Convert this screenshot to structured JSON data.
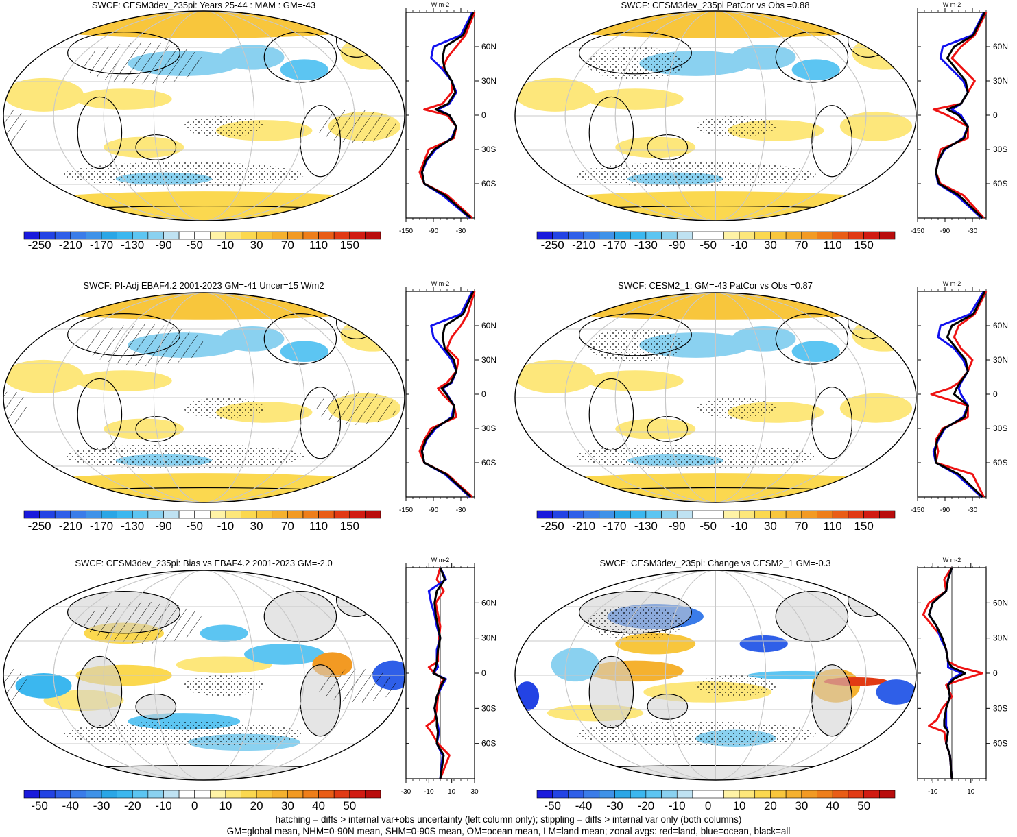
{
  "footnotes": [
    "hatching = diffs > internal var+obs uncertainty (left column only); stippling = diffs > internal var only (both columns)",
    "GM=global mean, NHM=0-90N mean, SHM=0-90S mean, OM=ocean mean, LM=land mean; zonal avgs: red=land, blue=ocean, black=all"
  ],
  "colors": {
    "land_gray": "#cfcfcf",
    "zonal_land": "#ee1111",
    "zonal_ocean": "#1111ee",
    "zonal_all": "#000000"
  },
  "chart_data": [
    {
      "type": "heatmap",
      "title": "SWCF: CESM3dev_235pi: Years 25-44 : MAM : GM=-43",
      "colorbar": {
        "ticks": [
          "-250",
          "-210",
          "-170",
          "-130",
          "-90",
          "-50",
          "-10",
          "30",
          "70",
          "110",
          "150"
        ]
      },
      "zonal": {
        "units": "W m-2",
        "xticks": [
          "-150",
          "-90",
          "-30"
        ],
        "xlim": [
          -150,
          0
        ],
        "yticks": [
          "60N",
          "30N",
          "0",
          "30S",
          "60S"
        ],
        "series": [
          {
            "name": "land",
            "lat": [
              90,
              70,
              60,
              50,
              40,
              30,
              20,
              10,
              5,
              0,
              -10,
              -20,
              -30,
              -40,
              -50,
              -60,
              -70,
              -90
            ],
            "values": [
              0,
              -20,
              -40,
              -60,
              -70,
              -50,
              -50,
              -70,
              -110,
              -60,
              -40,
              -45,
              -100,
              -110,
              -120,
              -110,
              -60,
              -5
            ]
          },
          {
            "name": "ocean",
            "lat": [
              90,
              70,
              60,
              50,
              40,
              30,
              20,
              10,
              5,
              0,
              -10,
              -20,
              -30,
              -40,
              -50,
              -60,
              -70,
              -90
            ],
            "values": [
              -5,
              -30,
              -90,
              -95,
              -70,
              -50,
              -40,
              -55,
              -80,
              -55,
              -40,
              -50,
              -85,
              -105,
              -115,
              -110,
              -70,
              -10
            ]
          },
          {
            "name": "all",
            "lat": [
              90,
              70,
              60,
              50,
              40,
              30,
              20,
              10,
              5,
              0,
              -10,
              -20,
              -30,
              -40,
              -50,
              -60,
              -70,
              -90
            ],
            "values": [
              -3,
              -25,
              -65,
              -70,
              -65,
              -50,
              -42,
              -58,
              -85,
              -55,
              -40,
              -48,
              -88,
              -107,
              -115,
              -110,
              -65,
              -8
            ]
          }
        ]
      }
    },
    {
      "type": "heatmap",
      "title": "SWCF: CESM3dev_235pi PatCor vs Obs =0.88",
      "colorbar": {
        "ticks": [
          "-250",
          "-210",
          "-170",
          "-130",
          "-90",
          "-50",
          "-10",
          "30",
          "70",
          "110",
          "150"
        ]
      },
      "zonal": {
        "units": "W m-2",
        "xticks": [
          "-150",
          "-90",
          "-30"
        ],
        "xlim": [
          -150,
          0
        ],
        "yticks": [
          "60N",
          "30N",
          "0",
          "30S",
          "60S"
        ],
        "series": [
          {
            "name": "land",
            "lat": [
              90,
              70,
              60,
              50,
              40,
              30,
              20,
              10,
              5,
              0,
              -10,
              -20,
              -30,
              -40,
              -50,
              -60,
              -70,
              -90
            ],
            "values": [
              0,
              -25,
              -55,
              -75,
              -50,
              -25,
              -40,
              -55,
              -115,
              -85,
              -40,
              -40,
              -100,
              -105,
              -110,
              -100,
              -50,
              -5
            ]
          },
          {
            "name": "ocean",
            "lat": [
              90,
              70,
              60,
              50,
              40,
              30,
              20,
              10,
              5,
              0,
              -10,
              -20,
              -30,
              -40,
              -50,
              -60,
              -70,
              -90
            ],
            "values": [
              -5,
              -30,
              -95,
              -100,
              -75,
              -50,
              -40,
              -55,
              -75,
              -55,
              -40,
              -50,
              -90,
              -105,
              -110,
              -105,
              -65,
              -10
            ]
          },
          {
            "name": "all",
            "lat": [
              90,
              70,
              60,
              50,
              40,
              30,
              20,
              10,
              5,
              0,
              -10,
              -20,
              -30,
              -40,
              -50,
              -60,
              -70,
              -90
            ],
            "values": [
              -3,
              -28,
              -70,
              -85,
              -65,
              -45,
              -40,
              -55,
              -85,
              -60,
              -40,
              -48,
              -92,
              -105,
              -110,
              -103,
              -60,
              -8
            ]
          }
        ]
      }
    },
    {
      "type": "heatmap",
      "title": "SWCF: PI-Adj EBAF4.2 2001-2023 GM=-41 Uncer=15 W/m2",
      "colorbar": {
        "ticks": [
          "-250",
          "-210",
          "-170",
          "-130",
          "-90",
          "-50",
          "-10",
          "30",
          "70",
          "110",
          "150"
        ]
      },
      "zonal": {
        "units": "W m-2",
        "xticks": [
          "-150",
          "-90",
          "-30"
        ],
        "xlim": [
          -150,
          0
        ],
        "yticks": [
          "60N",
          "30N",
          "0",
          "30S",
          "60S"
        ],
        "series": [
          {
            "name": "land",
            "lat": [
              90,
              70,
              60,
              50,
              40,
              30,
              20,
              10,
              5,
              0,
              -10,
              -20,
              -30,
              -40,
              -50,
              -60,
              -70,
              -90
            ],
            "values": [
              0,
              -15,
              -30,
              -50,
              -60,
              -35,
              -40,
              -60,
              -80,
              -70,
              -45,
              -40,
              -95,
              -110,
              -120,
              -110,
              -60,
              -5
            ]
          },
          {
            "name": "ocean",
            "lat": [
              90,
              70,
              60,
              50,
              40,
              30,
              20,
              10,
              5,
              0,
              -10,
              -20,
              -30,
              -40,
              -50,
              -60,
              -70,
              -90
            ],
            "values": [
              -5,
              -30,
              -95,
              -90,
              -70,
              -50,
              -40,
              -50,
              -70,
              -60,
              -45,
              -50,
              -85,
              -105,
              -115,
              -110,
              -65,
              -10
            ]
          },
          {
            "name": "all",
            "lat": [
              90,
              70,
              60,
              50,
              40,
              30,
              20,
              10,
              5,
              0,
              -10,
              -20,
              -30,
              -40,
              -50,
              -60,
              -70,
              -90
            ],
            "values": [
              -3,
              -25,
              -65,
              -70,
              -65,
              -45,
              -40,
              -52,
              -72,
              -62,
              -45,
              -47,
              -88,
              -107,
              -115,
              -110,
              -62,
              -8
            ]
          }
        ]
      }
    },
    {
      "type": "heatmap",
      "title": "SWCF: CESM2_1: GM=-43 PatCor vs Obs =0.87",
      "colorbar": {
        "ticks": [
          "-250",
          "-210",
          "-170",
          "-130",
          "-90",
          "-50",
          "-10",
          "30",
          "70",
          "110",
          "150"
        ]
      },
      "zonal": {
        "units": "W m-2",
        "xticks": [
          "-150",
          "-90",
          "-30"
        ],
        "xlim": [
          -150,
          0
        ],
        "yticks": [
          "60N",
          "30N",
          "0",
          "30S",
          "60S"
        ],
        "series": [
          {
            "name": "land",
            "lat": [
              90,
              70,
              60,
              50,
              40,
              30,
              20,
              10,
              5,
              0,
              -10,
              -20,
              -30,
              -40,
              -50,
              -60,
              -70,
              -90
            ],
            "values": [
              0,
              -25,
              -60,
              -70,
              -55,
              -30,
              -40,
              -60,
              -80,
              -120,
              -40,
              -40,
              -95,
              -110,
              -105,
              -110,
              -30,
              -5
            ]
          },
          {
            "name": "ocean",
            "lat": [
              90,
              70,
              60,
              50,
              40,
              30,
              20,
              10,
              5,
              0,
              -10,
              -20,
              -30,
              -40,
              -50,
              -60,
              -70,
              -90
            ],
            "values": [
              -5,
              -35,
              -100,
              -105,
              -70,
              -50,
              -40,
              -55,
              -60,
              -55,
              -40,
              -50,
              -90,
              -105,
              -115,
              -110,
              -65,
              -10
            ]
          },
          {
            "name": "all",
            "lat": [
              90,
              70,
              60,
              50,
              40,
              30,
              20,
              10,
              5,
              0,
              -10,
              -20,
              -30,
              -40,
              -50,
              -60,
              -70,
              -90
            ],
            "values": [
              -3,
              -28,
              -75,
              -85,
              -65,
              -45,
              -40,
              -57,
              -65,
              -70,
              -40,
              -47,
              -92,
              -107,
              -112,
              -110,
              -60,
              -8
            ]
          }
        ]
      }
    },
    {
      "type": "heatmap",
      "title": "SWCF: CESM3dev_235pi: Bias vs EBAF4.2 2001-2023 GM=-2.0",
      "colorbar": {
        "ticks": [
          "-50",
          "-40",
          "-30",
          "-20",
          "-10",
          "0",
          "10",
          "20",
          "30",
          "40",
          "50"
        ]
      },
      "zonal": {
        "units": "W m-2",
        "xticks": [
          "-30",
          "-10",
          "10",
          "30"
        ],
        "xlim": [
          -30,
          30
        ],
        "yticks": [
          "60N",
          "30N",
          "0",
          "30S",
          "60S"
        ],
        "series": [
          {
            "name": "land",
            "lat": [
              90,
              80,
              70,
              60,
              50,
              40,
              30,
              20,
              10,
              5,
              0,
              -5,
              -10,
              -20,
              -30,
              -40,
              -45,
              -50,
              -60,
              -70,
              -90
            ],
            "values": [
              0,
              -3,
              3,
              -4,
              -2,
              0,
              -1,
              -2,
              -2,
              -10,
              -5,
              3,
              0,
              -2,
              -3,
              -5,
              -12,
              -8,
              -2,
              8,
              0
            ]
          },
          {
            "name": "ocean",
            "lat": [
              90,
              80,
              70,
              60,
              50,
              40,
              30,
              20,
              10,
              5,
              0,
              -5,
              -10,
              -20,
              -30,
              -40,
              -45,
              -50,
              -60,
              -70,
              -90
            ],
            "values": [
              0,
              5,
              -10,
              -8,
              -5,
              -3,
              0,
              -3,
              -3,
              -2,
              -6,
              5,
              2,
              -3,
              -5,
              -3,
              -2,
              -1,
              -3,
              2,
              0
            ]
          },
          {
            "name": "all",
            "lat": [
              90,
              80,
              70,
              60,
              50,
              40,
              30,
              20,
              10,
              5,
              0,
              -5,
              -10,
              -20,
              -30,
              -40,
              -45,
              -50,
              -60,
              -70,
              -90
            ],
            "values": [
              0,
              4,
              -3,
              -5,
              -4,
              -2,
              0,
              -2,
              -3,
              -4,
              -6,
              4,
              1,
              -3,
              -5,
              -3,
              -3,
              -2,
              -3,
              3,
              0
            ]
          }
        ]
      }
    },
    {
      "type": "heatmap",
      "title": "SWCF: CESM3dev_235pi: Change vs CESM2_1 GM=-0.3",
      "colorbar": {
        "ticks": [
          "-50",
          "-40",
          "-30",
          "-20",
          "-10",
          "0",
          "10",
          "20",
          "30",
          "40",
          "50"
        ]
      },
      "zonal": {
        "units": "W m-2",
        "xticks": [
          "-10",
          "10"
        ],
        "xlim": [
          -18,
          18
        ],
        "yticks": [
          "60N",
          "30N",
          "0",
          "30S",
          "60S"
        ],
        "series": [
          {
            "name": "land",
            "lat": [
              90,
              80,
              70,
              60,
              50,
              40,
              30,
              20,
              10,
              5,
              0,
              -5,
              -10,
              -20,
              -30,
              -40,
              -45,
              -50,
              -60,
              -70,
              -90
            ],
            "values": [
              0,
              -4,
              -3,
              -12,
              -15,
              -10,
              -5,
              -3,
              -2,
              4,
              16,
              6,
              -3,
              0,
              -5,
              -8,
              -12,
              -4,
              -3,
              -1,
              0
            ]
          },
          {
            "name": "ocean",
            "lat": [
              90,
              80,
              70,
              60,
              50,
              40,
              30,
              20,
              10,
              5,
              0,
              -5,
              -10,
              -20,
              -30,
              -40,
              -45,
              -50,
              -60,
              -70,
              -90
            ],
            "values": [
              0,
              -2,
              -3,
              -10,
              -12,
              -8,
              -6,
              -3,
              -2,
              -2,
              5,
              0,
              -2,
              -1,
              -3,
              -3,
              -3,
              -2,
              -3,
              -1,
              0
            ]
          },
          {
            "name": "all",
            "lat": [
              90,
              80,
              70,
              60,
              50,
              40,
              30,
              20,
              10,
              5,
              0,
              -5,
              -10,
              -20,
              -30,
              -40,
              -45,
              -50,
              -60,
              -70,
              -90
            ],
            "values": [
              0,
              -2,
              -3,
              -10,
              -12,
              -8,
              -5,
              -3,
              -2,
              0,
              7,
              1,
              -2,
              -1,
              -3,
              -4,
              -4,
              -2,
              -3,
              -1,
              0
            ]
          }
        ]
      }
    }
  ]
}
